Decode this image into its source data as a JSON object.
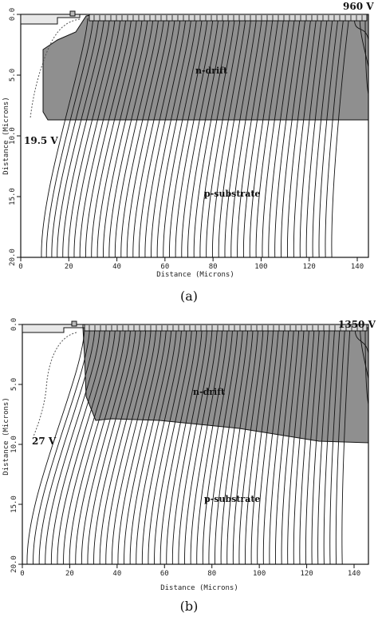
{
  "panels": [
    {
      "id": "a",
      "caption": "(a)",
      "top_voltage": "960 V",
      "side_voltage": "19.5 V",
      "region_upper": "n-drift",
      "region_lower": "p-substrate",
      "xlabel": "Distance (Microns)",
      "ylabel": "Distance (Microns)",
      "x_ticks": [
        "0",
        "20",
        "40",
        "60",
        "80",
        "100",
        "120",
        "140"
      ],
      "y_ticks": [
        "0.0",
        "5.0",
        "10.0",
        "15.0",
        "20.0"
      ]
    },
    {
      "id": "b",
      "caption": "(b)",
      "top_voltage": "1350 V",
      "side_voltage": "27 V",
      "region_upper": "n-drift",
      "region_lower": "p-substrate",
      "xlabel": "Distance (Microns)",
      "ylabel": "Distance (Microns)",
      "x_ticks": [
        "0",
        "20",
        "40",
        "60",
        "80",
        "100",
        "120",
        "140"
      ],
      "y_ticks": [
        "0.0",
        "5.0",
        "10.0",
        "15.0",
        "20.0"
      ]
    }
  ],
  "colors": {
    "depletion_fill": "#8f8f8f",
    "line": "#111111",
    "background": "#ffffff"
  }
}
